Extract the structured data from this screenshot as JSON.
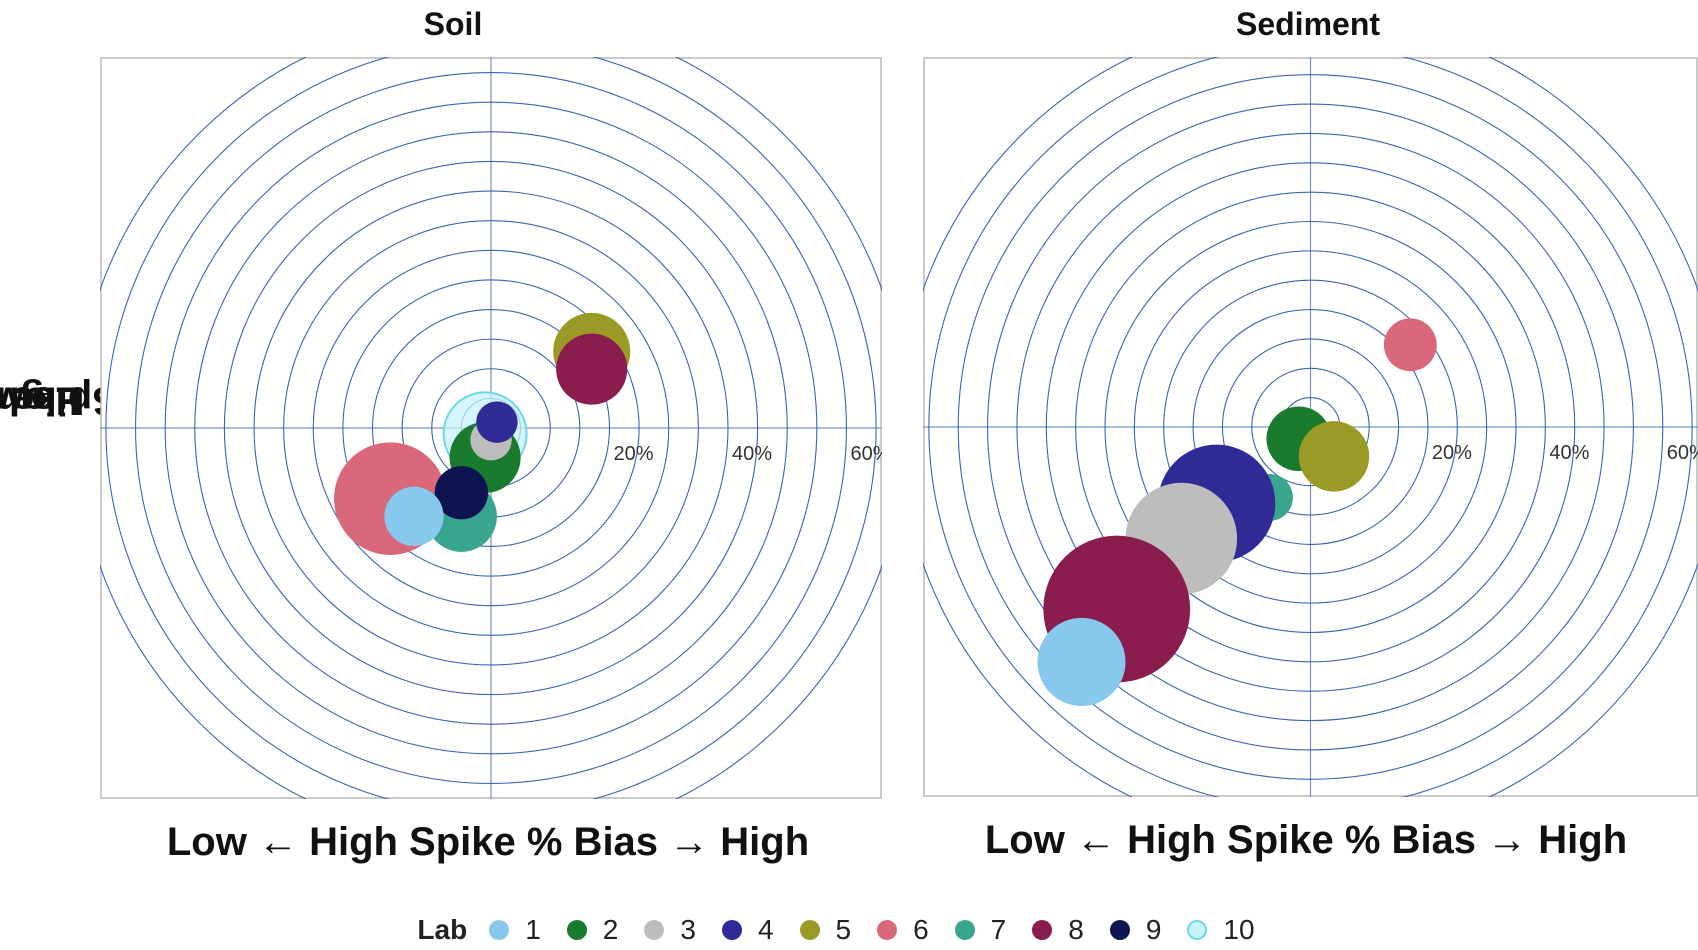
{
  "chart_data": [
    {
      "type": "bubble",
      "title": "Soil",
      "xlabel": {
        "left": "Low",
        "middle": "High Spike % Bias",
        "right": "High"
      },
      "ylabel": {
        "left": "Low",
        "middle": "Low Spike % Bias",
        "right": "High"
      },
      "xlim": [
        -66,
        66
      ],
      "ylim": [
        -63,
        63
      ],
      "ring_step_pct": 5,
      "ring_count": 14,
      "tick_labels": [
        {
          "value": 20,
          "label": "20%"
        },
        {
          "value": 40,
          "label": "40%"
        },
        {
          "value": 60,
          "label": "60%"
        }
      ],
      "grid": true,
      "points": [
        {
          "lab": "6",
          "x": -17,
          "y": -12,
          "size": 9.5
        },
        {
          "lab": "7",
          "x": -5,
          "y": -15,
          "size": 6
        },
        {
          "lab": "10",
          "x": -1,
          "y": -1,
          "size": 7
        },
        {
          "lab": "2",
          "x": -1,
          "y": -5,
          "size": 6
        },
        {
          "lab": "3",
          "x": 0,
          "y": -2,
          "size": 3.5
        },
        {
          "lab": "4",
          "x": 1,
          "y": 1,
          "size": 3.5
        },
        {
          "lab": "9",
          "x": -5,
          "y": -11,
          "size": 4.5
        },
        {
          "lab": "1",
          "x": -13,
          "y": -15,
          "size": 5
        },
        {
          "lab": "5",
          "x": 17,
          "y": 13,
          "size": 6.5
        },
        {
          "lab": "8",
          "x": 17,
          "y": 10,
          "size": 6
        }
      ]
    },
    {
      "type": "bubble",
      "title": "Sediment",
      "xlabel": {
        "left": "Low",
        "middle": "High Spike % Bias",
        "right": "High"
      },
      "xlim": [
        -66,
        66
      ],
      "ylim": [
        -63,
        63
      ],
      "ring_step_pct": 5,
      "ring_count": 14,
      "tick_labels": [
        {
          "value": 20,
          "label": "20%"
        },
        {
          "value": 40,
          "label": "40%"
        },
        {
          "value": 60,
          "label": "60%"
        }
      ],
      "grid": true,
      "points": [
        {
          "lab": "6",
          "x": 17,
          "y": 14,
          "size": 4.5
        },
        {
          "lab": "2",
          "x": -2,
          "y": -2,
          "size": 5.5
        },
        {
          "lab": "5",
          "x": 4,
          "y": -5,
          "size": 6
        },
        {
          "lab": "7",
          "x": -7,
          "y": -12,
          "size": 4
        },
        {
          "lab": "4",
          "x": -16,
          "y": -13,
          "size": 10
        },
        {
          "lab": "3",
          "x": -22,
          "y": -19,
          "size": 9.5
        },
        {
          "lab": "8",
          "x": -33,
          "y": -31,
          "size": 12.5
        },
        {
          "lab": "1",
          "x": -39,
          "y": -40,
          "size": 7.5
        }
      ]
    }
  ],
  "legend": {
    "title": "Lab",
    "items": [
      {
        "label": "1",
        "color": "#87c8ec"
      },
      {
        "label": "2",
        "color": "#1a7a2e"
      },
      {
        "label": "3",
        "color": "#bdbdbd"
      },
      {
        "label": "4",
        "color": "#2f2a96"
      },
      {
        "label": "5",
        "color": "#9a9a26"
      },
      {
        "label": "6",
        "color": "#d9697a"
      },
      {
        "label": "7",
        "color": "#3aa58f"
      },
      {
        "label": "8",
        "color": "#8a1c4e"
      },
      {
        "label": "9",
        "color": "#0d1450"
      },
      {
        "label": "10",
        "color": "#c6f2f8",
        "stroke": "#6fd6e6"
      }
    ]
  }
}
